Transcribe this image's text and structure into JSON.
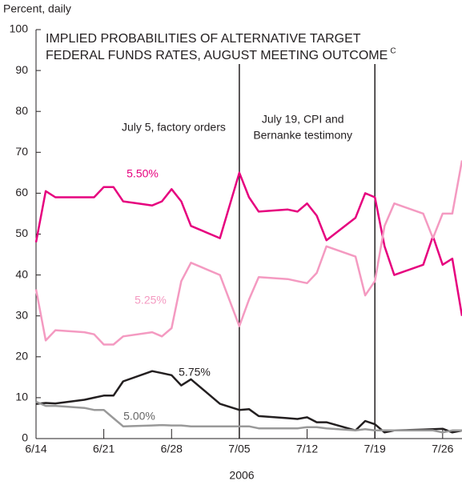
{
  "chart_data": {
    "type": "line",
    "title": [
      "IMPLIED PROBABILITIES OF ALTERNATIVE TARGET",
      "FEDERAL FUNDS RATES, AUGUST MEETING OUTCOME"
    ],
    "title_note": "C",
    "y_label": "Percent, daily",
    "x_label": "2006",
    "x": [
      "6/14",
      "6/15",
      "6/16",
      "6/19",
      "6/20",
      "6/21",
      "6/22",
      "6/23",
      "6/26",
      "6/27",
      "6/28",
      "6/29",
      "6/30",
      "7/03",
      "7/05",
      "7/06",
      "7/07",
      "7/10",
      "7/11",
      "7/12",
      "7/13",
      "7/14",
      "7/17",
      "7/18",
      "7/19",
      "7/20",
      "7/21",
      "7/24",
      "7/25",
      "7/26",
      "7/27",
      "7/28"
    ],
    "series": [
      {
        "name": "5.50%",
        "color": "#e6007e",
        "values": [
          48,
          60.5,
          59,
          59,
          59,
          61.5,
          61.5,
          58,
          57,
          58,
          61,
          58,
          52,
          49,
          65,
          59,
          55.5,
          56,
          55.5,
          57.5,
          54.5,
          48.5,
          54,
          60,
          59,
          47,
          40,
          42.5,
          49.5,
          42.5,
          44,
          30
        ]
      },
      {
        "name": "5.25%",
        "color": "#f49ac1",
        "values": [
          36.5,
          24,
          26.5,
          26,
          25.5,
          23,
          23,
          25,
          26,
          25,
          27,
          38.5,
          43,
          40,
          27.5,
          34,
          39.5,
          39,
          38.5,
          38,
          40.5,
          47,
          44.5,
          35,
          38.5,
          52,
          57.5,
          55,
          49,
          55,
          55,
          68
        ]
      },
      {
        "name": "5.75%",
        "color": "#231f20",
        "values": [
          8.5,
          8.7,
          8.6,
          9.5,
          10,
          10.5,
          10.5,
          14,
          16.5,
          16,
          15.5,
          13,
          14.5,
          8.5,
          7,
          7.2,
          5.5,
          5,
          4.8,
          5.2,
          4,
          4,
          2,
          4.3,
          3.5,
          1.5,
          2,
          2.2,
          2.3,
          2.4,
          1.5,
          2
        ]
      },
      {
        "name": "5.00%",
        "color": "#999999",
        "values": [
          9,
          8,
          8,
          7.5,
          7,
          7,
          5,
          3,
          3.2,
          3.3,
          3.2,
          3.2,
          3,
          3,
          3,
          3,
          2.5,
          2.5,
          2.5,
          2.8,
          2.8,
          2.5,
          2,
          2.3,
          2,
          2,
          2,
          2,
          2,
          1.5,
          2,
          2
        ]
      }
    ],
    "annotations": [
      {
        "lines": [
          "July 5, factory orders"
        ],
        "x": "7/05"
      },
      {
        "lines": [
          "July 19, CPI and",
          "Bernanke testimony"
        ],
        "x": "7/19"
      }
    ],
    "ylim": [
      0,
      100
    ],
    "yticks": [
      0,
      10,
      20,
      30,
      40,
      50,
      60,
      70,
      80,
      90,
      100
    ],
    "xlim": [
      "6/14",
      "7/28"
    ],
    "xticks": [
      "6/14",
      "6/21",
      "6/28",
      "7/05",
      "7/12",
      "7/19",
      "7/26"
    ]
  }
}
